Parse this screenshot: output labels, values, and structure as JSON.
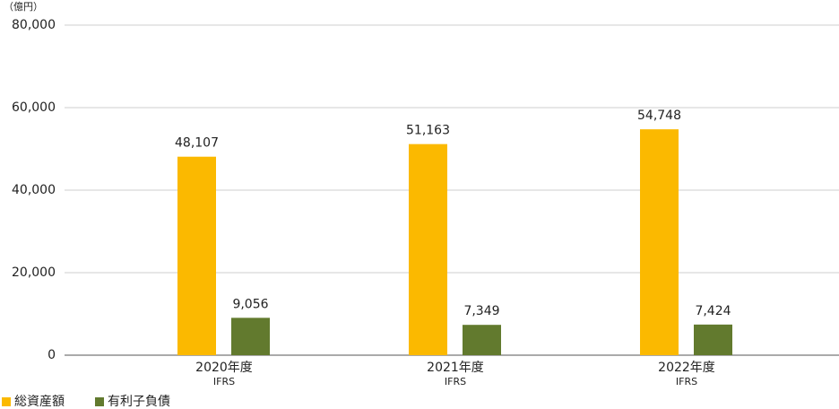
{
  "chart_data": {
    "type": "bar",
    "y_label": "（億円）",
    "categories": [
      "2020年度",
      "2021年度",
      "2022年度"
    ],
    "category_sublabels": [
      "IFRS",
      "IFRS",
      "IFRS"
    ],
    "series": [
      {
        "name": "総資産額",
        "color": "#fbb900",
        "values": [
          48107,
          51163,
          54748
        ],
        "value_labels": [
          "48,107",
          "51,163",
          "54,748"
        ]
      },
      {
        "name": "有利子負債",
        "color": "#627a2e",
        "values": [
          9056,
          7349,
          7424
        ],
        "value_labels": [
          "9,056",
          "7,349",
          "7,424"
        ]
      }
    ],
    "ylim": [
      0,
      80000
    ],
    "yticks": [
      0,
      {
        "value": 20000,
        "label": "20,000"
      },
      {
        "value": 40000,
        "label": "40,000"
      },
      {
        "value": 60000,
        "label": "60,000"
      },
      {
        "value": 80000,
        "label": "80,000"
      }
    ],
    "grid": true,
    "legend": "bottom-left"
  }
}
